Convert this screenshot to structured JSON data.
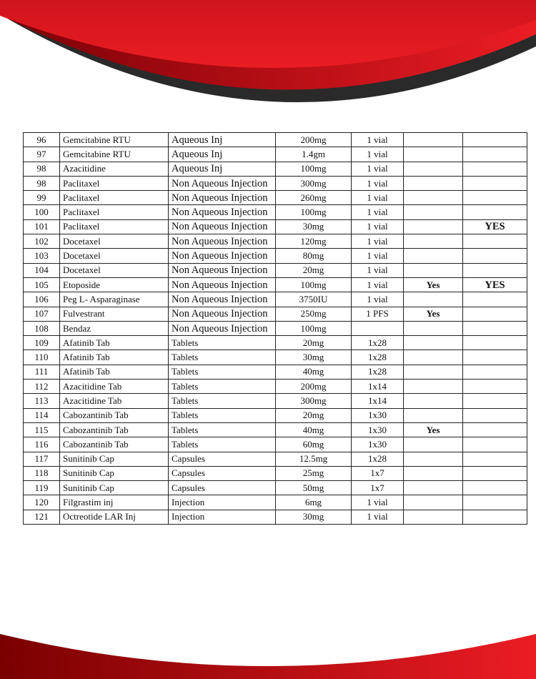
{
  "colors": {
    "brand_red": "#e31b23",
    "dark_red": "#8b0008",
    "dark_gray": "#2a2a2a"
  },
  "rows": [
    {
      "no": "96",
      "name": "Gemcitabine RTU",
      "type": "Aqueous Inj",
      "strength": "200mg",
      "pack": "1 vial",
      "c6": "",
      "c7": ""
    },
    {
      "no": "97",
      "name": "Gemcitabine RTU",
      "type": "Aqueous Inj",
      "strength": "1.4gm",
      "pack": "1 vial",
      "c6": "",
      "c7": ""
    },
    {
      "no": "98",
      "name": "Azacitidine",
      "type": "Aqueous Inj",
      "strength": "100mg",
      "pack": "1 vial",
      "c6": "",
      "c7": ""
    },
    {
      "no": "98",
      "name": "Paclitaxel",
      "type": "Non Aqueous Injection",
      "strength": "300mg",
      "pack": "1 vial",
      "c6": "",
      "c7": ""
    },
    {
      "no": "99",
      "name": "Paclitaxel",
      "type": "Non Aqueous Injection",
      "strength": "260mg",
      "pack": "1 vial",
      "c6": "",
      "c7": ""
    },
    {
      "no": "100",
      "name": "Paclitaxel",
      "type": "Non Aqueous Injection",
      "strength": "100mg",
      "pack": "1 vial",
      "c6": "",
      "c7": ""
    },
    {
      "no": "101",
      "name": "Paclitaxel",
      "type": "Non Aqueous Injection",
      "strength": "30mg",
      "pack": "1 vial",
      "c6": "",
      "c7": "YES"
    },
    {
      "no": "102",
      "name": "Docetaxel",
      "type": "Non Aqueous Injection",
      "strength": "120mg",
      "pack": "1 vial",
      "c6": "",
      "c7": ""
    },
    {
      "no": "103",
      "name": "Docetaxel",
      "type": "Non Aqueous Injection",
      "strength": "80mg",
      "pack": "1 vial",
      "c6": "",
      "c7": ""
    },
    {
      "no": "104",
      "name": "Docetaxel",
      "type": "Non Aqueous Injection",
      "strength": "20mg",
      "pack": "1 vial",
      "c6": "",
      "c7": ""
    },
    {
      "no": "105",
      "name": "Etoposide",
      "type": "Non Aqueous Injection",
      "strength": "100mg",
      "pack": "1 vial",
      "c6": "Yes",
      "c7": "YES"
    },
    {
      "no": "106",
      "name": "Peg L- Asparaginase",
      "type": "Non Aqueous Injection",
      "strength": "3750IU",
      "pack": "1 vial",
      "c6": "",
      "c7": ""
    },
    {
      "no": "107",
      "name": "Fulvestrant",
      "type": "Non Aqueous Injection",
      "strength": "250mg",
      "pack": "1 PFS",
      "c6": "Yes",
      "c7": ""
    },
    {
      "no": "108",
      "name": "Bendaz",
      "type": "Non Aqueous Injection",
      "strength": "100mg",
      "pack": "",
      "c6": "",
      "c7": ""
    },
    {
      "no": "109",
      "name": "Afatinib Tab",
      "type": "Tablets",
      "strength": "20mg",
      "pack": "1x28",
      "c6": "",
      "c7": ""
    },
    {
      "no": "110",
      "name": "Afatinib Tab",
      "type": "Tablets",
      "strength": "30mg",
      "pack": "1x28",
      "c6": "",
      "c7": ""
    },
    {
      "no": "111",
      "name": "Afatinib Tab",
      "type": "Tablets",
      "strength": "40mg",
      "pack": "1x28",
      "c6": "",
      "c7": ""
    },
    {
      "no": "112",
      "name": "Azacitidine Tab",
      "type": "Tablets",
      "strength": "200mg",
      "pack": "1x14",
      "c6": "",
      "c7": ""
    },
    {
      "no": "113",
      "name": "Azacitidine Tab",
      "type": "Tablets",
      "strength": "300mg",
      "pack": "1x14",
      "c6": "",
      "c7": ""
    },
    {
      "no": "114",
      "name": "Cabozantinib Tab",
      "type": "Tablets",
      "strength": "20mg",
      "pack": "1x30",
      "c6": "",
      "c7": ""
    },
    {
      "no": "115",
      "name": "Cabozantinib Tab",
      "type": "Tablets",
      "strength": "40mg",
      "pack": "1x30",
      "c6": "Yes",
      "c7": ""
    },
    {
      "no": "116",
      "name": "Cabozantinib Tab",
      "type": "Tablets",
      "strength": "60mg",
      "pack": "1x30",
      "c6": "",
      "c7": ""
    },
    {
      "no": "117",
      "name": "Sunitinib Cap",
      "type": "Capsules",
      "strength": "12.5mg",
      "pack": "1x28",
      "c6": "",
      "c7": ""
    },
    {
      "no": "118",
      "name": "Sunitinib Cap",
      "type": "Capsules",
      "strength": "25mg",
      "pack": "1x7",
      "c6": "",
      "c7": ""
    },
    {
      "no": "119",
      "name": "Sunitinib Cap",
      "type": "Capsules",
      "strength": "50mg",
      "pack": "1x7",
      "c6": "",
      "c7": ""
    },
    {
      "no": "120",
      "name": "Filgrastim inj",
      "type": "Injection",
      "strength": "6mg",
      "pack": "1 vial",
      "c6": "",
      "c7": ""
    },
    {
      "no": "121",
      "name": "Octreotide LAR Inj",
      "type": "Injection",
      "strength": "30mg",
      "pack": "1 vial",
      "c6": "",
      "c7": ""
    }
  ]
}
